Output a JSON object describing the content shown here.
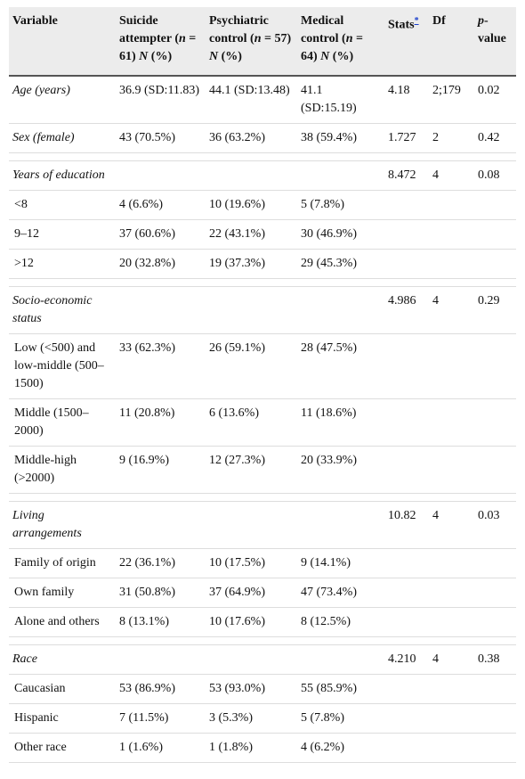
{
  "table": {
    "header": [
      [
        "Variable"
      ],
      [
        "Suicide attempter (",
        "n",
        " = 61) ",
        "N",
        " (%)"
      ],
      [
        "Psychiatric control (",
        "n",
        " = 57) ",
        "N",
        " (%)"
      ],
      [
        "Medical control (",
        "n",
        " = 64) ",
        "N",
        " (%)"
      ],
      [
        "Stats",
        "*"
      ],
      [
        "Df"
      ],
      [
        "",
        "p",
        "-value"
      ]
    ],
    "sections": [
      [
        {
          "row": [
            "Age (years)",
            "36.9 (SD:11.83)",
            "44.1 (SD:13.48)",
            "41.1 (SD:15.19)",
            "4.18",
            "2;179",
            "0.02"
          ],
          "levels": []
        },
        {
          "row": [
            "Sex (female)",
            "43 (70.5%)",
            "36 (63.2%)",
            "38 (59.4%)",
            "1.727",
            "2",
            "0.42"
          ],
          "levels": []
        }
      ],
      [
        {
          "row": [
            "Years of education",
            "",
            "",
            "",
            "8.472",
            "4",
            "0.08"
          ],
          "levels": [
            [
              "<8",
              "4 (6.6%)",
              "10 (19.6%)",
              "5 (7.8%)",
              "",
              "",
              ""
            ],
            [
              "9–12",
              "37 (60.6%)",
              "22 (43.1%)",
              "30 (46.9%)",
              "",
              "",
              ""
            ],
            [
              ">12",
              "20 (32.8%)",
              "19 (37.3%)",
              "29 (45.3%)",
              "",
              "",
              ""
            ]
          ]
        }
      ],
      [
        {
          "row": [
            "Socio-economic status",
            "",
            "",
            "",
            "4.986",
            "4",
            "0.29"
          ],
          "levels": [
            [
              "Low (<500) and low-middle (500–1500)",
              "33 (62.3%)",
              "26 (59.1%)",
              "28 (47.5%)",
              "",
              "",
              ""
            ],
            [
              "Middle (1500–2000)",
              "11 (20.8%)",
              "6 (13.6%)",
              "11 (18.6%)",
              "",
              "",
              ""
            ],
            [
              "Middle-high (>2000)",
              "9 (16.9%)",
              "12 (27.3%)",
              "20 (33.9%)",
              "",
              "",
              ""
            ]
          ]
        }
      ],
      [
        {
          "row": [
            "Living arrangements",
            "",
            "",
            "",
            "10.82",
            "4",
            "0.03"
          ],
          "levels": [
            [
              "Family of origin",
              "22 (36.1%)",
              "10 (17.5%)",
              "9 (14.1%)",
              "",
              "",
              ""
            ],
            [
              "Own family",
              "31 (50.8%)",
              "37 (64.9%)",
              "47 (73.4%)",
              "",
              "",
              ""
            ],
            [
              "Alone and others",
              "8 (13.1%)",
              "10 (17.6%)",
              "8 (12.5%)",
              "",
              "",
              ""
            ]
          ]
        }
      ],
      [
        {
          "row": [
            "Race",
            "",
            "",
            "",
            "4.210",
            "4",
            "0.38"
          ],
          "levels": [
            [
              "Caucasian",
              "53 (86.9%)",
              "53 (93.0%)",
              "55 (85.9%)",
              "",
              "",
              ""
            ],
            [
              "Hispanic",
              "7 (11.5%)",
              "3 (5.3%)",
              "5 (7.8%)",
              "",
              "",
              ""
            ],
            [
              "Other race",
              "1 (1.6%)",
              "1 (1.8%)",
              "4 (6.2%)",
              "",
              "",
              ""
            ]
          ]
        }
      ]
    ]
  }
}
